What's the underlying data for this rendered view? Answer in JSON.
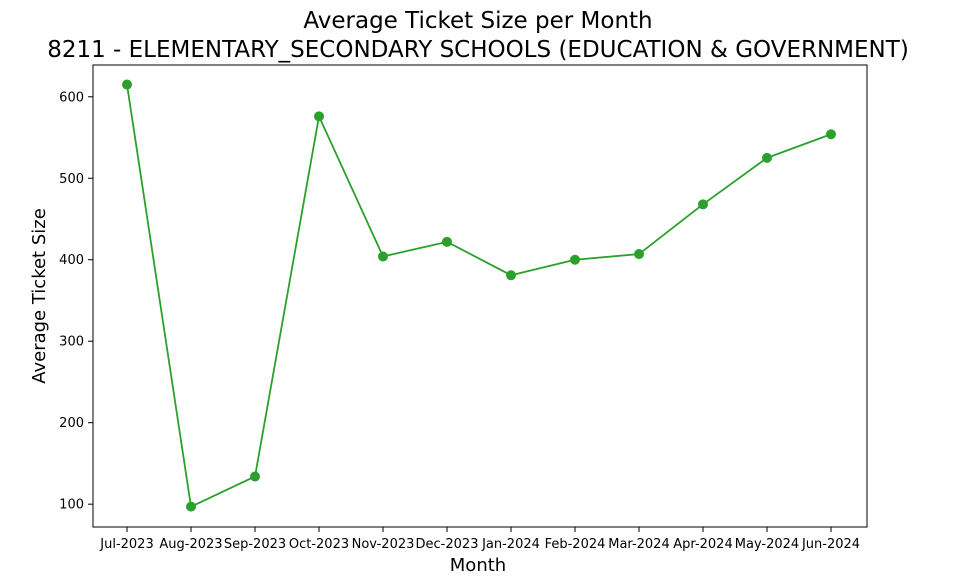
{
  "chart_data": {
    "type": "line",
    "title": "Average Ticket Size per Month",
    "subtitle": "8211 - ELEMENTARY_SECONDARY SCHOOLS (EDUCATION & GOVERNMENT)",
    "xlabel": "Month",
    "ylabel": "Average Ticket Size",
    "categories": [
      "Jul-2023",
      "Aug-2023",
      "Sep-2023",
      "Oct-2023",
      "Nov-2023",
      "Dec-2023",
      "Jan-2024",
      "Feb-2024",
      "Mar-2024",
      "Apr-2024",
      "May-2024",
      "Jun-2024"
    ],
    "series": [
      {
        "values": [
          615,
          97,
          134,
          576,
          404,
          422,
          381,
          400,
          407,
          468,
          525,
          554
        ],
        "color": "#2ca02c",
        "marker": "circle"
      }
    ],
    "ylim": [
      72,
      639
    ],
    "yticks": [
      100,
      200,
      300,
      400,
      500,
      600
    ],
    "grid": false,
    "legend": "none"
  }
}
